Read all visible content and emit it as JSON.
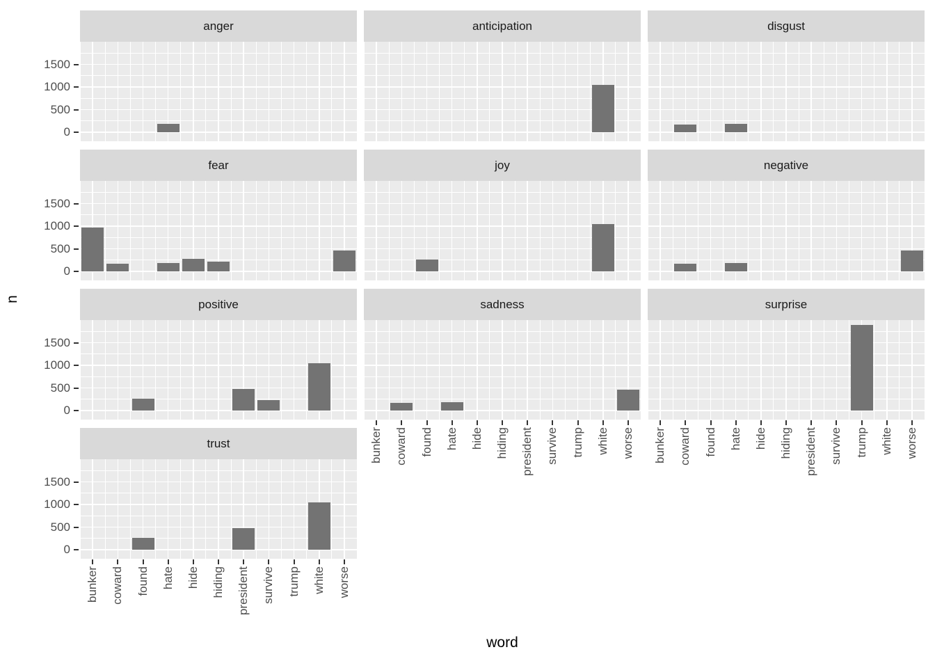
{
  "chart_data": {
    "type": "bar",
    "title": "",
    "xlabel": "word",
    "ylabel": "n",
    "facet_variable": "sentiment",
    "categories": [
      "bunker",
      "coward",
      "found",
      "hate",
      "hide",
      "hiding",
      "president",
      "survive",
      "trump",
      "white",
      "worse"
    ],
    "y_ticks": [
      "0",
      "500",
      "1000",
      "1500"
    ],
    "y_tick_values": [
      0,
      500,
      1000,
      1500
    ],
    "y_minor_values": [
      250,
      750,
      1250,
      1750
    ],
    "ylim": [
      0,
      2000
    ],
    "grid": "on",
    "legend": "none",
    "bar_color": "#737373",
    "panel_bg_color": "#EBEBEB",
    "strip_bg_color": "#D9D9D9",
    "axis_text_color": "#4D4D4D",
    "facets": [
      {
        "name": "anger",
        "values": {
          "hate": 180
        }
      },
      {
        "name": "anticipation",
        "values": {
          "white": 1040
        }
      },
      {
        "name": "disgust",
        "values": {
          "coward": 170,
          "hate": 180
        }
      },
      {
        "name": "fear",
        "values": {
          "bunker": 970,
          "coward": 170,
          "hate": 180,
          "hide": 285,
          "hiding": 215,
          "worse": 465
        }
      },
      {
        "name": "joy",
        "values": {
          "found": 260,
          "white": 1040
        }
      },
      {
        "name": "negative",
        "values": {
          "coward": 170,
          "hate": 180,
          "worse": 465
        }
      },
      {
        "name": "positive",
        "values": {
          "found": 260,
          "president": 480,
          "survive": 235,
          "white": 1040
        }
      },
      {
        "name": "sadness",
        "values": {
          "coward": 170,
          "hate": 180,
          "worse": 465
        }
      },
      {
        "name": "surprise",
        "values": {
          "trump": 1900
        }
      },
      {
        "name": "trust",
        "values": {
          "found": 260,
          "president": 480,
          "white": 1040
        }
      }
    ]
  }
}
